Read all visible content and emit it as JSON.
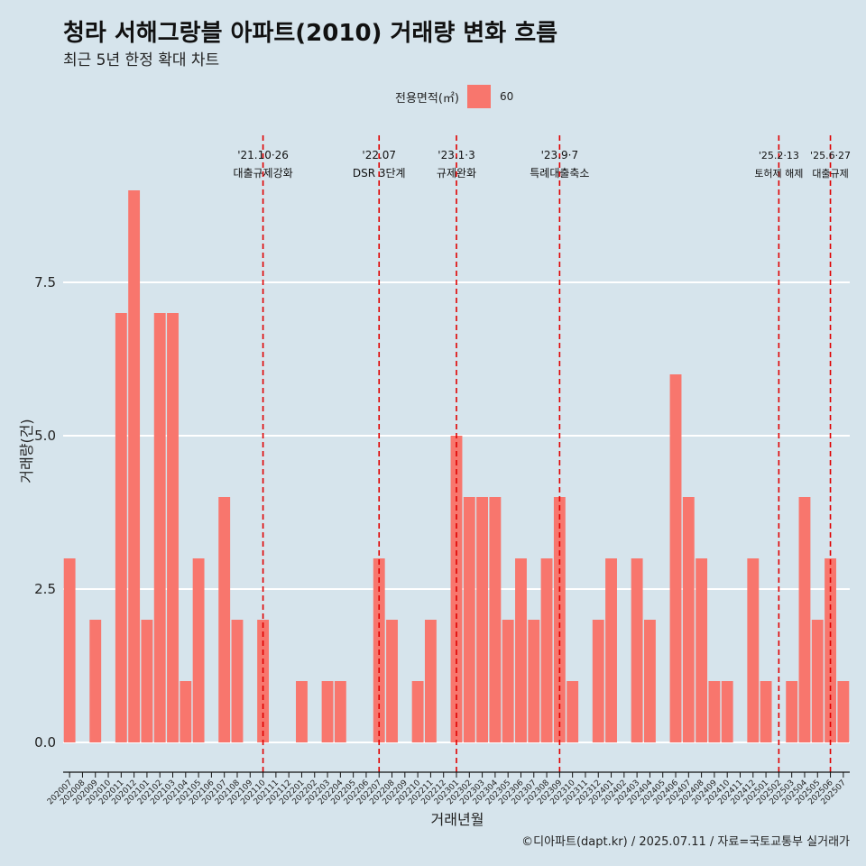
{
  "title": "청라 서해그랑블 아파트(2010) 거래량 변화 흐름",
  "subtitle": "최근 5년 한정 확대 차트",
  "legend": {
    "title": "전용면적(㎡)",
    "entries": [
      {
        "label": "60",
        "color": "#F8766D"
      }
    ]
  },
  "caption": "©디아파트(dapt.kr) / 2025.07.11 / 자료=국토교통부 실거래가",
  "chart_data": {
    "type": "bar",
    "xlabel": "거래년월",
    "ylabel": "거래량(건)",
    "ylim": [
      0,
      9
    ],
    "yticks": [
      0,
      2.5,
      5,
      7.5
    ],
    "ytick_labels": [
      "0.0",
      "2.5",
      "5.0",
      "7.5"
    ],
    "grid": true,
    "legend_position": "top",
    "bar_color": "#F8766D",
    "categories": [
      "202007",
      "202008",
      "202009",
      "202010",
      "202011",
      "202012",
      "202101",
      "202102",
      "202103",
      "202104",
      "202105",
      "202106",
      "202107",
      "202108",
      "202109",
      "202110",
      "202111",
      "202112",
      "202201",
      "202202",
      "202203",
      "202204",
      "202205",
      "202206",
      "202207",
      "202208",
      "202209",
      "202210",
      "202211",
      "202212",
      "202301",
      "202302",
      "202303",
      "202304",
      "202305",
      "202306",
      "202307",
      "202308",
      "202309",
      "202310",
      "202311",
      "202312",
      "202401",
      "202402",
      "202403",
      "202404",
      "202405",
      "202406",
      "202407",
      "202408",
      "202409",
      "202410",
      "202411",
      "202412",
      "202501",
      "202502",
      "202503",
      "202504",
      "202505",
      "202506",
      "202507"
    ],
    "series": [
      {
        "values": [
          3,
          0,
          2,
          0,
          7,
          9,
          2,
          7,
          7,
          1,
          3,
          0,
          4,
          2,
          0,
          2,
          0,
          0,
          1,
          0,
          1,
          1,
          0,
          0,
          3,
          2,
          0,
          1,
          2,
          0,
          5,
          4,
          4,
          4,
          2,
          3,
          2,
          3,
          4,
          1,
          0,
          2,
          3,
          0,
          3,
          2,
          0,
          6,
          4,
          3,
          1,
          1,
          0,
          3,
          1,
          0,
          1,
          4,
          2,
          3,
          1
        ]
      }
    ],
    "annotations": [
      {
        "x": "202110",
        "date": "'21.10·26",
        "text": "대출규제강화"
      },
      {
        "x": "202207",
        "date": "'22.07",
        "text": "DSR 3단계"
      },
      {
        "x": "202301",
        "date": "'23.1·3",
        "text": "규제완화"
      },
      {
        "x": "202309",
        "date": "'23.9·7",
        "text": "특례대출축소"
      },
      {
        "x": "202502",
        "date": "'25.2·13",
        "text": "토허제 해제"
      },
      {
        "x": "202506",
        "date": "'25.6·27",
        "text": "대출규제"
      }
    ]
  }
}
